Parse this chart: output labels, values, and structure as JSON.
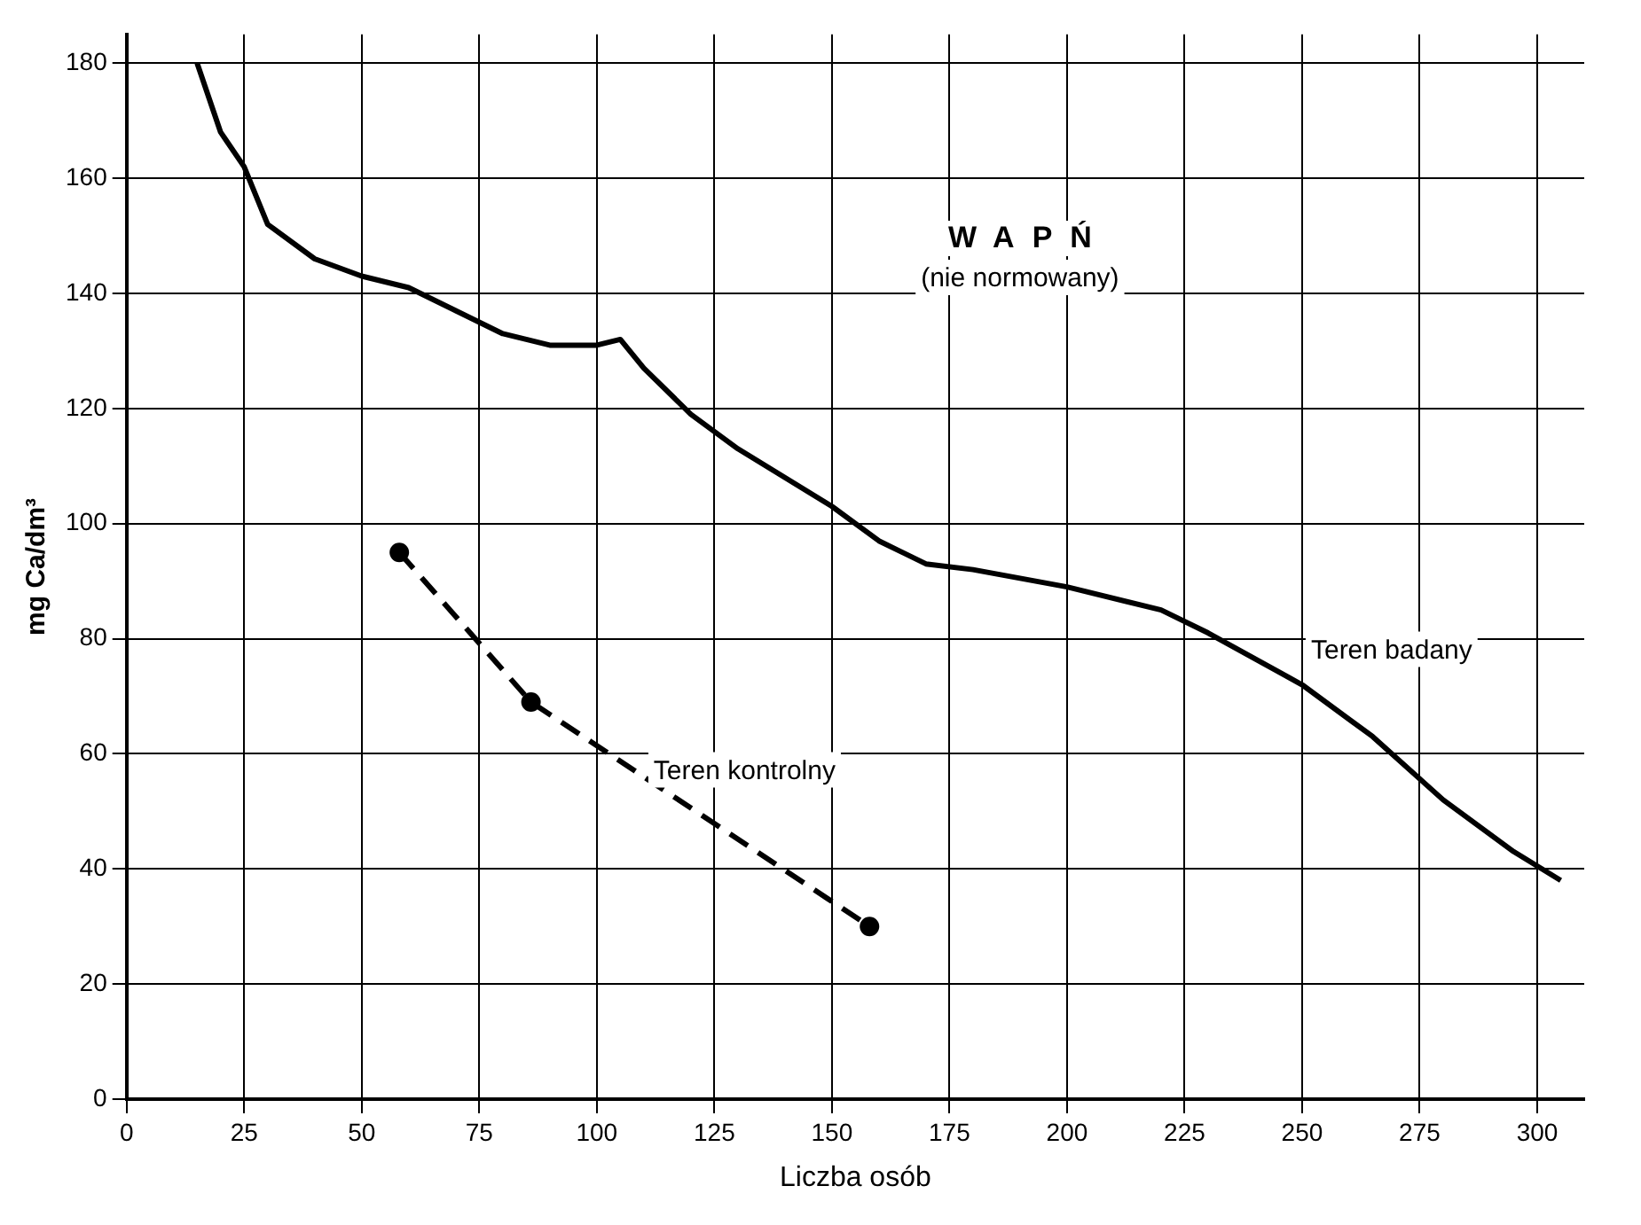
{
  "chart_data": {
    "type": "line",
    "title": "WAPŃ",
    "subtitle": "(nie normowany)",
    "xlabel": "Liczba osób",
    "ylabel": "mg Ca/dm³",
    "xlim": [
      0,
      310
    ],
    "xticks": [
      0,
      25,
      50,
      75,
      100,
      125,
      150,
      175,
      200,
      225,
      250,
      275,
      300
    ],
    "ylim": [
      0,
      185
    ],
    "yticks": [
      0,
      20,
      40,
      60,
      80,
      100,
      120,
      140,
      160,
      180
    ],
    "grid": true,
    "legend": false,
    "series": [
      {
        "name": "Teren badany",
        "color": "#000000",
        "line_style": "solid",
        "marker": "none",
        "x": [
          15,
          20,
          25,
          30,
          40,
          50,
          60,
          70,
          80,
          90,
          100,
          105,
          110,
          120,
          130,
          140,
          150,
          160,
          170,
          180,
          200,
          220,
          230,
          250,
          265,
          280,
          295,
          305
        ],
        "values": [
          180,
          168,
          162,
          152,
          146,
          143,
          141,
          137,
          133,
          131,
          131,
          132,
          127,
          119,
          113,
          108,
          103,
          97,
          93,
          92,
          89,
          85,
          81,
          72,
          63,
          52,
          43,
          38
        ]
      },
      {
        "name": "Teren kontrolny",
        "color": "#000000",
        "line_style": "dashed",
        "marker": "circle",
        "x": [
          58,
          86,
          158
        ],
        "values": [
          95,
          69,
          30
        ]
      }
    ]
  }
}
